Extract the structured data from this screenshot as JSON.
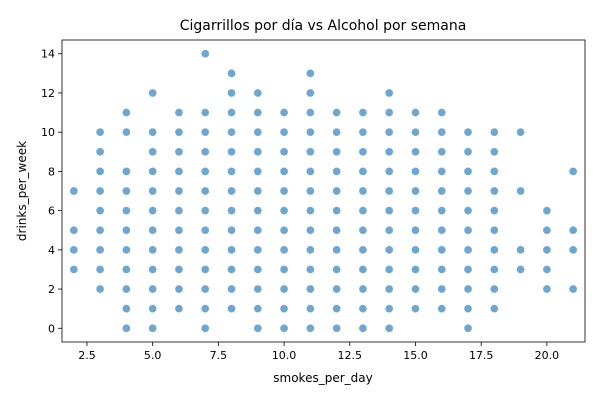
{
  "chart_data": {
    "type": "scatter",
    "title": "Cigarrillos por día vs Alcohol por semana",
    "xlabel": "smokes_per_day",
    "ylabel": "drinks_per_week",
    "xlim": [
      1.55,
      21.45
    ],
    "ylim": [
      -0.7,
      14.7
    ],
    "xticks": [
      2.5,
      5.0,
      7.5,
      10.0,
      12.5,
      15.0,
      17.5,
      20.0
    ],
    "xtick_labels": [
      "2.5",
      "5.0",
      "7.5",
      "10.0",
      "12.5",
      "15.0",
      "17.5",
      "20.0"
    ],
    "yticks": [
      0,
      2,
      4,
      6,
      8,
      10,
      12,
      14
    ],
    "ytick_labels": [
      "0",
      "2",
      "4",
      "6",
      "8",
      "10",
      "12",
      "14"
    ],
    "grid": false,
    "legend": "none",
    "marker_color": "#1f77b4",
    "marker_alpha": 0.65,
    "points": [
      [
        2,
        7
      ],
      [
        2,
        5
      ],
      [
        2,
        4
      ],
      [
        2,
        3
      ],
      [
        3,
        10
      ],
      [
        3,
        9
      ],
      [
        3,
        8
      ],
      [
        3,
        7
      ],
      [
        3,
        6
      ],
      [
        3,
        5
      ],
      [
        3,
        4
      ],
      [
        3,
        3
      ],
      [
        3,
        2
      ],
      [
        4,
        11
      ],
      [
        4,
        10
      ],
      [
        4,
        8
      ],
      [
        4,
        7
      ],
      [
        4,
        6
      ],
      [
        4,
        5
      ],
      [
        4,
        4
      ],
      [
        4,
        3
      ],
      [
        4,
        2
      ],
      [
        4,
        1
      ],
      [
        4,
        0
      ],
      [
        5,
        12
      ],
      [
        5,
        10
      ],
      [
        5,
        9
      ],
      [
        5,
        8
      ],
      [
        5,
        7
      ],
      [
        5,
        6
      ],
      [
        5,
        5
      ],
      [
        5,
        4
      ],
      [
        5,
        3
      ],
      [
        5,
        2
      ],
      [
        5,
        1
      ],
      [
        5,
        0
      ],
      [
        6,
        11
      ],
      [
        6,
        10
      ],
      [
        6,
        9
      ],
      [
        6,
        8
      ],
      [
        6,
        7
      ],
      [
        6,
        6
      ],
      [
        6,
        5
      ],
      [
        6,
        4
      ],
      [
        6,
        3
      ],
      [
        6,
        2
      ],
      [
        6,
        1
      ],
      [
        7,
        14
      ],
      [
        7,
        11
      ],
      [
        7,
        10
      ],
      [
        7,
        9
      ],
      [
        7,
        8
      ],
      [
        7,
        7
      ],
      [
        7,
        6
      ],
      [
        7,
        5
      ],
      [
        7,
        4
      ],
      [
        7,
        3
      ],
      [
        7,
        2
      ],
      [
        7,
        1
      ],
      [
        7,
        0
      ],
      [
        8,
        13
      ],
      [
        8,
        12
      ],
      [
        8,
        11
      ],
      [
        8,
        10
      ],
      [
        8,
        9
      ],
      [
        8,
        8
      ],
      [
        8,
        7
      ],
      [
        8,
        6
      ],
      [
        8,
        5
      ],
      [
        8,
        4
      ],
      [
        8,
        3
      ],
      [
        8,
        2
      ],
      [
        8,
        1
      ],
      [
        9,
        12
      ],
      [
        9,
        11
      ],
      [
        9,
        10
      ],
      [
        9,
        9
      ],
      [
        9,
        8
      ],
      [
        9,
        7
      ],
      [
        9,
        6
      ],
      [
        9,
        5
      ],
      [
        9,
        4
      ],
      [
        9,
        3
      ],
      [
        9,
        2
      ],
      [
        9,
        1
      ],
      [
        9,
        0
      ],
      [
        10,
        11
      ],
      [
        10,
        10
      ],
      [
        10,
        9
      ],
      [
        10,
        8
      ],
      [
        10,
        7
      ],
      [
        10,
        6
      ],
      [
        10,
        5
      ],
      [
        10,
        4
      ],
      [
        10,
        3
      ],
      [
        10,
        2
      ],
      [
        10,
        1
      ],
      [
        10,
        0
      ],
      [
        11,
        13
      ],
      [
        11,
        12
      ],
      [
        11,
        11
      ],
      [
        11,
        10
      ],
      [
        11,
        9
      ],
      [
        11,
        8
      ],
      [
        11,
        7
      ],
      [
        11,
        6
      ],
      [
        11,
        5
      ],
      [
        11,
        4
      ],
      [
        11,
        3
      ],
      [
        11,
        2
      ],
      [
        11,
        1
      ],
      [
        11,
        0
      ],
      [
        12,
        11
      ],
      [
        12,
        10
      ],
      [
        12,
        9
      ],
      [
        12,
        8
      ],
      [
        12,
        7
      ],
      [
        12,
        6
      ],
      [
        12,
        5
      ],
      [
        12,
        4
      ],
      [
        12,
        3
      ],
      [
        12,
        2
      ],
      [
        12,
        1
      ],
      [
        12,
        0
      ],
      [
        13,
        11
      ],
      [
        13,
        10
      ],
      [
        13,
        9
      ],
      [
        13,
        8
      ],
      [
        13,
        7
      ],
      [
        13,
        6
      ],
      [
        13,
        5
      ],
      [
        13,
        4
      ],
      [
        13,
        3
      ],
      [
        13,
        2
      ],
      [
        13,
        1
      ],
      [
        13,
        0
      ],
      [
        14,
        12
      ],
      [
        14,
        11
      ],
      [
        14,
        10
      ],
      [
        14,
        9
      ],
      [
        14,
        8
      ],
      [
        14,
        7
      ],
      [
        14,
        6
      ],
      [
        14,
        5
      ],
      [
        14,
        4
      ],
      [
        14,
        3
      ],
      [
        14,
        2
      ],
      [
        14,
        1
      ],
      [
        14,
        0
      ],
      [
        15,
        11
      ],
      [
        15,
        10
      ],
      [
        15,
        9
      ],
      [
        15,
        8
      ],
      [
        15,
        7
      ],
      [
        15,
        6
      ],
      [
        15,
        5
      ],
      [
        15,
        4
      ],
      [
        15,
        3
      ],
      [
        15,
        2
      ],
      [
        15,
        1
      ],
      [
        16,
        11
      ],
      [
        16,
        10
      ],
      [
        16,
        9
      ],
      [
        16,
        8
      ],
      [
        16,
        7
      ],
      [
        16,
        6
      ],
      [
        16,
        5
      ],
      [
        16,
        4
      ],
      [
        16,
        3
      ],
      [
        16,
        2
      ],
      [
        16,
        1
      ],
      [
        17,
        10
      ],
      [
        17,
        9
      ],
      [
        17,
        8
      ],
      [
        17,
        7
      ],
      [
        17,
        6
      ],
      [
        17,
        5
      ],
      [
        17,
        4
      ],
      [
        17,
        3
      ],
      [
        17,
        2
      ],
      [
        17,
        1
      ],
      [
        17,
        0
      ],
      [
        18,
        10
      ],
      [
        18,
        9
      ],
      [
        18,
        8
      ],
      [
        18,
        7
      ],
      [
        18,
        6
      ],
      [
        18,
        5
      ],
      [
        18,
        4
      ],
      [
        18,
        3
      ],
      [
        18,
        2
      ],
      [
        18,
        1
      ],
      [
        19,
        10
      ],
      [
        19,
        7
      ],
      [
        19,
        4
      ],
      [
        19,
        3
      ],
      [
        20,
        6
      ],
      [
        20,
        5
      ],
      [
        20,
        4
      ],
      [
        20,
        3
      ],
      [
        20,
        2
      ],
      [
        21,
        8
      ],
      [
        21,
        5
      ],
      [
        21,
        4
      ],
      [
        21,
        2
      ]
    ]
  }
}
